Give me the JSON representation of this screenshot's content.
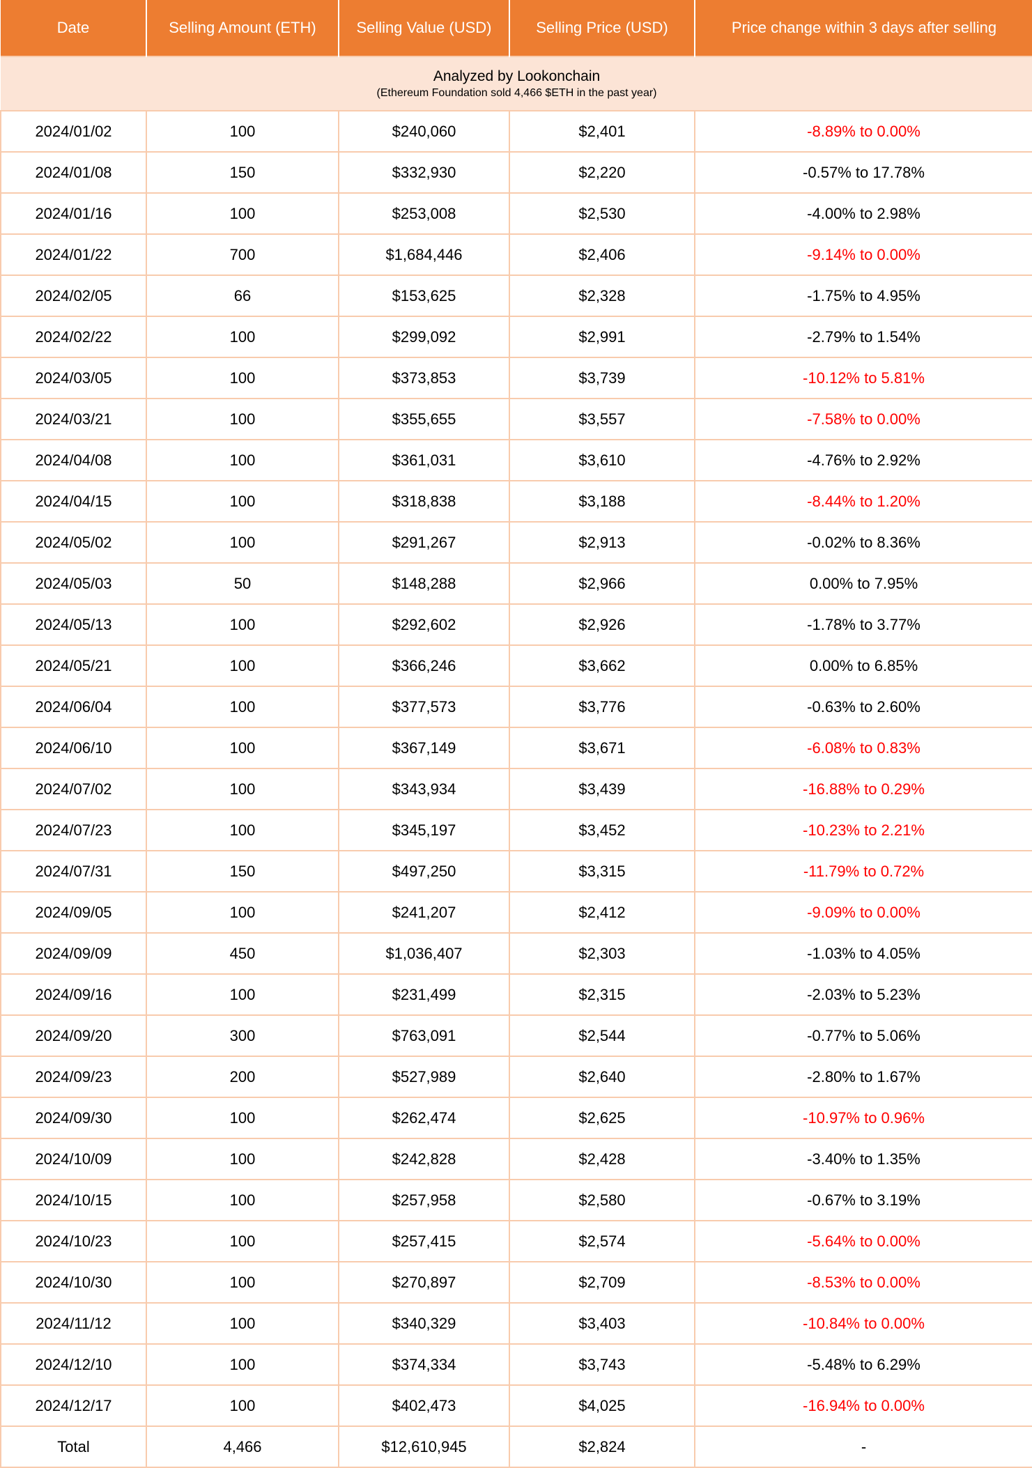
{
  "colors": {
    "header_bg": "#ED7D31",
    "header_text": "#FFFFFF",
    "subheader_bg": "#FCE4D6",
    "grid_border": "#F8CBAD",
    "negative_change_text": "#FF0000",
    "body_text": "#000000"
  },
  "chart_data": {
    "type": "table",
    "title": "Analyzed by Lookonchain",
    "subtitle": "(Ethereum Foundation sold 4,466 $ETH in the past year)",
    "columns": [
      "Date",
      "Selling Amount (ETH)",
      "Selling Value (USD)",
      "Selling Price (USD)",
      "Price change within 3 days after selling"
    ],
    "rows": [
      {
        "date": "2024/01/02",
        "amount": "100",
        "value": "$240,060",
        "price": "$2,401",
        "change": "-8.89% to 0.00%",
        "red": true
      },
      {
        "date": "2024/01/08",
        "amount": "150",
        "value": "$332,930",
        "price": "$2,220",
        "change": "-0.57% to 17.78%",
        "red": false
      },
      {
        "date": "2024/01/16",
        "amount": "100",
        "value": "$253,008",
        "price": "$2,530",
        "change": "-4.00% to 2.98%",
        "red": false
      },
      {
        "date": "2024/01/22",
        "amount": "700",
        "value": "$1,684,446",
        "price": "$2,406",
        "change": "-9.14% to 0.00%",
        "red": true
      },
      {
        "date": "2024/02/05",
        "amount": "66",
        "value": "$153,625",
        "price": "$2,328",
        "change": "-1.75% to 4.95%",
        "red": false
      },
      {
        "date": "2024/02/22",
        "amount": "100",
        "value": "$299,092",
        "price": "$2,991",
        "change": "-2.79% to 1.54%",
        "red": false
      },
      {
        "date": "2024/03/05",
        "amount": "100",
        "value": "$373,853",
        "price": "$3,739",
        "change": "-10.12% to 5.81%",
        "red": true
      },
      {
        "date": "2024/03/21",
        "amount": "100",
        "value": "$355,655",
        "price": "$3,557",
        "change": "-7.58% to 0.00%",
        "red": true
      },
      {
        "date": "2024/04/08",
        "amount": "100",
        "value": "$361,031",
        "price": "$3,610",
        "change": "-4.76% to 2.92%",
        "red": false
      },
      {
        "date": "2024/04/15",
        "amount": "100",
        "value": "$318,838",
        "price": "$3,188",
        "change": "-8.44% to 1.20%",
        "red": true
      },
      {
        "date": "2024/05/02",
        "amount": "100",
        "value": "$291,267",
        "price": "$2,913",
        "change": "-0.02% to 8.36%",
        "red": false
      },
      {
        "date": "2024/05/03",
        "amount": "50",
        "value": "$148,288",
        "price": "$2,966",
        "change": "0.00% to 7.95%",
        "red": false
      },
      {
        "date": "2024/05/13",
        "amount": "100",
        "value": "$292,602",
        "price": "$2,926",
        "change": "-1.78% to 3.77%",
        "red": false
      },
      {
        "date": "2024/05/21",
        "amount": "100",
        "value": "$366,246",
        "price": "$3,662",
        "change": "0.00% to 6.85%",
        "red": false
      },
      {
        "date": "2024/06/04",
        "amount": "100",
        "value": "$377,573",
        "price": "$3,776",
        "change": "-0.63% to 2.60%",
        "red": false
      },
      {
        "date": "2024/06/10",
        "amount": "100",
        "value": "$367,149",
        "price": "$3,671",
        "change": "-6.08% to 0.83%",
        "red": true
      },
      {
        "date": "2024/07/02",
        "amount": "100",
        "value": "$343,934",
        "price": "$3,439",
        "change": "-16.88% to 0.29%",
        "red": true
      },
      {
        "date": "2024/07/23",
        "amount": "100",
        "value": "$345,197",
        "price": "$3,452",
        "change": "-10.23% to 2.21%",
        "red": true
      },
      {
        "date": "2024/07/31",
        "amount": "150",
        "value": "$497,250",
        "price": "$3,315",
        "change": "-11.79% to 0.72%",
        "red": true
      },
      {
        "date": "2024/09/05",
        "amount": "100",
        "value": "$241,207",
        "price": "$2,412",
        "change": "-9.09% to 0.00%",
        "red": true
      },
      {
        "date": "2024/09/09",
        "amount": "450",
        "value": "$1,036,407",
        "price": "$2,303",
        "change": "-1.03% to 4.05%",
        "red": false
      },
      {
        "date": "2024/09/16",
        "amount": "100",
        "value": "$231,499",
        "price": "$2,315",
        "change": "-2.03% to 5.23%",
        "red": false
      },
      {
        "date": "2024/09/20",
        "amount": "300",
        "value": "$763,091",
        "price": "$2,544",
        "change": "-0.77% to 5.06%",
        "red": false
      },
      {
        "date": "2024/09/23",
        "amount": "200",
        "value": "$527,989",
        "price": "$2,640",
        "change": "-2.80% to 1.67%",
        "red": false
      },
      {
        "date": "2024/09/30",
        "amount": "100",
        "value": "$262,474",
        "price": "$2,625",
        "change": "-10.97% to 0.96%",
        "red": true
      },
      {
        "date": "2024/10/09",
        "amount": "100",
        "value": "$242,828",
        "price": "$2,428",
        "change": "-3.40% to 1.35%",
        "red": false
      },
      {
        "date": "2024/10/15",
        "amount": "100",
        "value": "$257,958",
        "price": "$2,580",
        "change": "-0.67% to 3.19%",
        "red": false
      },
      {
        "date": "2024/10/23",
        "amount": "100",
        "value": "$257,415",
        "price": "$2,574",
        "change": "-5.64% to 0.00%",
        "red": true
      },
      {
        "date": "2024/10/30",
        "amount": "100",
        "value": "$270,897",
        "price": "$2,709",
        "change": "-8.53% to 0.00%",
        "red": true
      },
      {
        "date": "2024/11/12",
        "amount": "100",
        "value": "$340,329",
        "price": "$3,403",
        "change": "-10.84% to 0.00%",
        "red": true
      },
      {
        "date": "2024/12/10",
        "amount": "100",
        "value": "$374,334",
        "price": "$3,743",
        "change": "-5.48% to 6.29%",
        "red": false
      },
      {
        "date": "2024/12/17",
        "amount": "100",
        "value": "$402,473",
        "price": "$4,025",
        "change": "-16.94% to 0.00%",
        "red": true
      }
    ],
    "total": {
      "date": "Total",
      "amount": "4,466",
      "value": "$12,610,945",
      "price": "$2,824",
      "change": "-"
    }
  }
}
